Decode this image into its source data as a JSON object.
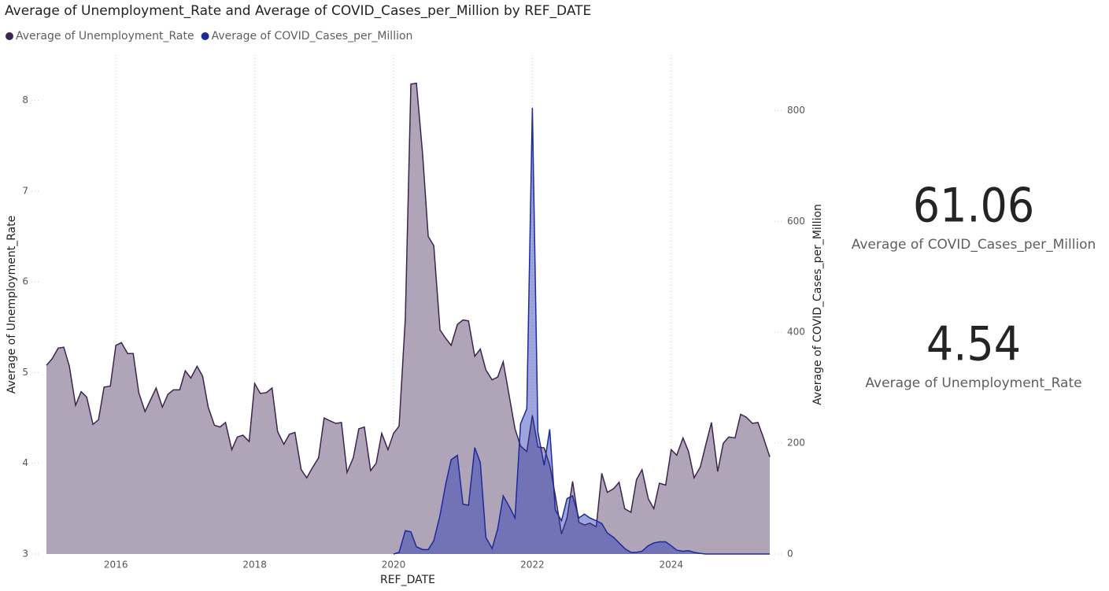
{
  "chart_data": {
    "type": "area",
    "title": "Average of Unemployment_Rate and Average of COVID_Cases_per_Million by REF_DATE",
    "x_label": "REF_DATE",
    "y_label": "Average of Unemployment_Rate",
    "y2_label": "Average of COVID_Cases_per_Million",
    "xlim": [
      2015,
      2025.42
    ],
    "xticks": [
      2016,
      2018,
      2020,
      2022,
      2024
    ],
    "ylim": [
      3,
      8.5
    ],
    "yticks": [
      3,
      4,
      5,
      6,
      7,
      8
    ],
    "y2lim": [
      0,
      900
    ],
    "y2ticks": [
      0,
      200,
      400,
      600,
      800
    ],
    "grid": true,
    "legend": "top-left",
    "x": [
      2015,
      2015.08,
      2015.17,
      2015.25,
      2015.33,
      2015.42,
      2015.5,
      2015.58,
      2015.67,
      2015.75,
      2015.83,
      2015.92,
      2016,
      2016.08,
      2016.17,
      2016.25,
      2016.33,
      2016.42,
      2016.5,
      2016.58,
      2016.67,
      2016.75,
      2016.83,
      2016.92,
      2017,
      2017.08,
      2017.17,
      2017.25,
      2017.33,
      2017.42,
      2017.5,
      2017.58,
      2017.67,
      2017.75,
      2017.83,
      2017.92,
      2018,
      2018.08,
      2018.17,
      2018.25,
      2018.33,
      2018.42,
      2018.5,
      2018.58,
      2018.67,
      2018.75,
      2018.83,
      2018.92,
      2019,
      2019.08,
      2019.17,
      2019.25,
      2019.33,
      2019.42,
      2019.5,
      2019.58,
      2019.67,
      2019.75,
      2019.83,
      2019.92,
      2020,
      2020.08,
      2020.17,
      2020.25,
      2020.33,
      2020.42,
      2020.5,
      2020.58,
      2020.67,
      2020.75,
      2020.83,
      2020.92,
      2021,
      2021.08,
      2021.17,
      2021.25,
      2021.33,
      2021.42,
      2021.5,
      2021.58,
      2021.67,
      2021.75,
      2021.83,
      2021.92,
      2022,
      2022.08,
      2022.17,
      2022.25,
      2022.33,
      2022.42,
      2022.5,
      2022.58,
      2022.67,
      2022.75,
      2022.83,
      2022.92,
      2023,
      2023.08,
      2023.17,
      2023.25,
      2023.33,
      2023.42,
      2023.5,
      2023.58,
      2023.67,
      2023.75,
      2023.83,
      2023.92,
      2024,
      2024.08,
      2024.17,
      2024.25,
      2024.33,
      2024.42,
      2024.5,
      2024.58,
      2024.67,
      2024.75,
      2024.83,
      2024.92,
      2025,
      2025.08,
      2025.17,
      2025.25,
      2025.33,
      2025.42
    ],
    "series": [
      {
        "name": "Average of Unemployment_Rate",
        "color": "#3b2450",
        "fill": "#b0a4b8",
        "values": [
          5.08,
          5.15,
          5.27,
          5.28,
          5.07,
          4.64,
          4.79,
          4.73,
          4.43,
          4.48,
          4.84,
          4.85,
          5.3,
          5.33,
          5.21,
          5.21,
          4.78,
          4.57,
          4.7,
          4.83,
          4.62,
          4.76,
          4.81,
          4.81,
          5.02,
          4.94,
          5.07,
          4.96,
          4.62,
          4.42,
          4.4,
          4.45,
          4.15,
          4.29,
          4.31,
          4.24,
          4.88,
          4.77,
          4.78,
          4.83,
          4.35,
          4.21,
          4.32,
          4.34,
          3.93,
          3.84,
          3.95,
          4.06,
          4.5,
          4.47,
          4.44,
          4.45,
          3.9,
          4.06,
          4.38,
          4.4,
          3.92,
          4.0,
          4.33,
          4.15,
          4.33,
          4.41,
          5.6,
          8.18,
          8.19,
          7.4,
          6.5,
          6.4,
          5.47,
          5.38,
          5.3,
          5.53,
          5.58,
          5.57,
          5.18,
          5.26,
          5.03,
          4.92,
          4.95,
          5.12,
          4.73,
          4.38,
          4.19,
          4.13,
          4.53,
          4.18,
          4.17,
          3.98,
          3.65,
          3.22,
          3.4,
          3.8,
          3.35,
          3.32,
          3.34,
          3.3,
          3.89,
          3.68,
          3.72,
          3.79,
          3.5,
          3.46,
          3.82,
          3.93,
          3.61,
          3.5,
          3.78,
          3.76,
          4.15,
          4.09,
          4.28,
          4.13,
          3.84,
          3.96,
          4.21,
          4.45,
          3.91,
          4.22,
          4.29,
          4.28,
          4.54,
          4.51,
          4.44,
          4.45,
          4.28,
          4.07
        ]
      },
      {
        "name": "Average of COVID_Cases_per_Million",
        "color": "#1c2a9c",
        "fill": "rgba(40,56,180,0.45)",
        "axis": "y2",
        "values": [
          null,
          null,
          null,
          null,
          null,
          null,
          null,
          null,
          null,
          null,
          null,
          null,
          null,
          null,
          null,
          null,
          null,
          null,
          null,
          null,
          null,
          null,
          null,
          null,
          null,
          null,
          null,
          null,
          null,
          null,
          null,
          null,
          null,
          null,
          null,
          null,
          null,
          null,
          null,
          null,
          null,
          null,
          null,
          null,
          null,
          null,
          null,
          null,
          null,
          null,
          null,
          null,
          null,
          null,
          null,
          null,
          null,
          null,
          null,
          null,
          0,
          3,
          42,
          40,
          13,
          8,
          8,
          24,
          70,
          125,
          170,
          178,
          90,
          88,
          192,
          165,
          30,
          10,
          45,
          105,
          85,
          65,
          235,
          262,
          805,
          220,
          160,
          225,
          80,
          60,
          100,
          105,
          65,
          72,
          65,
          60,
          55,
          38,
          30,
          20,
          10,
          3,
          3,
          5,
          15,
          20,
          22,
          22,
          15,
          7,
          5,
          6,
          3,
          1,
          0,
          0,
          0,
          0,
          0,
          0,
          0,
          0,
          0,
          0,
          0,
          0
        ]
      }
    ]
  },
  "cards": [
    {
      "value": "61.06",
      "label": "Average of COVID_Cases_per_Million"
    },
    {
      "value": "4.54",
      "label": "Average of Unemployment_Rate"
    }
  ]
}
